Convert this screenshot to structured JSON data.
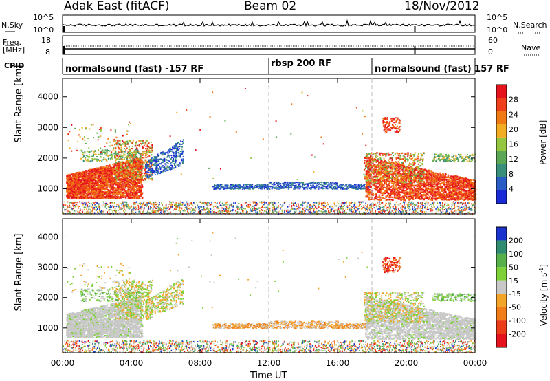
{
  "header": {
    "station": "Adak East (fitACF)",
    "beam": "Beam 02",
    "date": "18/Nov/2012"
  },
  "panels": {
    "nsky": {
      "left_label": "N.Sky",
      "right_label": "N.Search",
      "left_ticks": [
        "10^5",
        "10^0"
      ],
      "right_ticks": [
        "10^5",
        "10^0"
      ]
    },
    "freq": {
      "left_label": "Freq.",
      "left_unit": "[MHz]",
      "right_label": "Nave",
      "left_ticks": [
        "18",
        "8"
      ],
      "right_ticks": [
        "60",
        "0"
      ]
    },
    "cpid": {
      "label": "CPID",
      "segments": [
        {
          "label": "normalsound (fast) -157 RF"
        },
        {
          "label": "rbsp 200 RF"
        },
        {
          "label": "normalsound (fast) 157 RF"
        }
      ]
    }
  },
  "colors": {
    "background": "#ffffff",
    "dashed_line": "#bbbbbb",
    "scatter_blue": "#1f4fbf",
    "ground_gray": "#c8c8c8"
  },
  "chart_data": [
    {
      "type": "heatmap",
      "name": "power",
      "ylabel": "Slant Range [km]",
      "yticks": [
        1000,
        2000,
        3000,
        4000
      ],
      "ylim": [
        180,
        4600
      ],
      "colorbar": {
        "label": "Power [dB]",
        "ticks": [
          4,
          8,
          12,
          16,
          20,
          24,
          28
        ],
        "range": [
          0,
          32
        ],
        "colors": [
          "#1a2bd6",
          "#2a5ec4",
          "#3a8f7a",
          "#5ba755",
          "#95c640",
          "#f2ad22",
          "#f07a14",
          "#ef3f1b",
          "#e5141c"
        ]
      }
    },
    {
      "type": "heatmap",
      "name": "velocity",
      "ylabel": "Slant Range [km]",
      "yticks": [
        1000,
        2000,
        3000,
        4000
      ],
      "ylim": [
        180,
        4600
      ],
      "colorbar": {
        "label": "Velocity [m s",
        "label_sup": "-1",
        "label_tail": "]",
        "ticks": [
          "200",
          "100",
          "50",
          "15",
          "-15",
          "-50",
          "-100",
          "-200"
        ],
        "colors": [
          "#1a33cc",
          "#2f8c6e",
          "#57b04a",
          "#7ed238",
          "#c8c8c8",
          "#f3a52a",
          "#f07c1a",
          "#ec3c1a",
          "#e4121c"
        ]
      }
    }
  ],
  "time_axis": {
    "label": "Time UT",
    "ticks": [
      "00:00",
      "04:00",
      "08:00",
      "12:00",
      "16:00",
      "20:00",
      "00:00"
    ],
    "range_hours": [
      0,
      24
    ],
    "dashed_lines_hours": [
      12,
      18
    ]
  }
}
